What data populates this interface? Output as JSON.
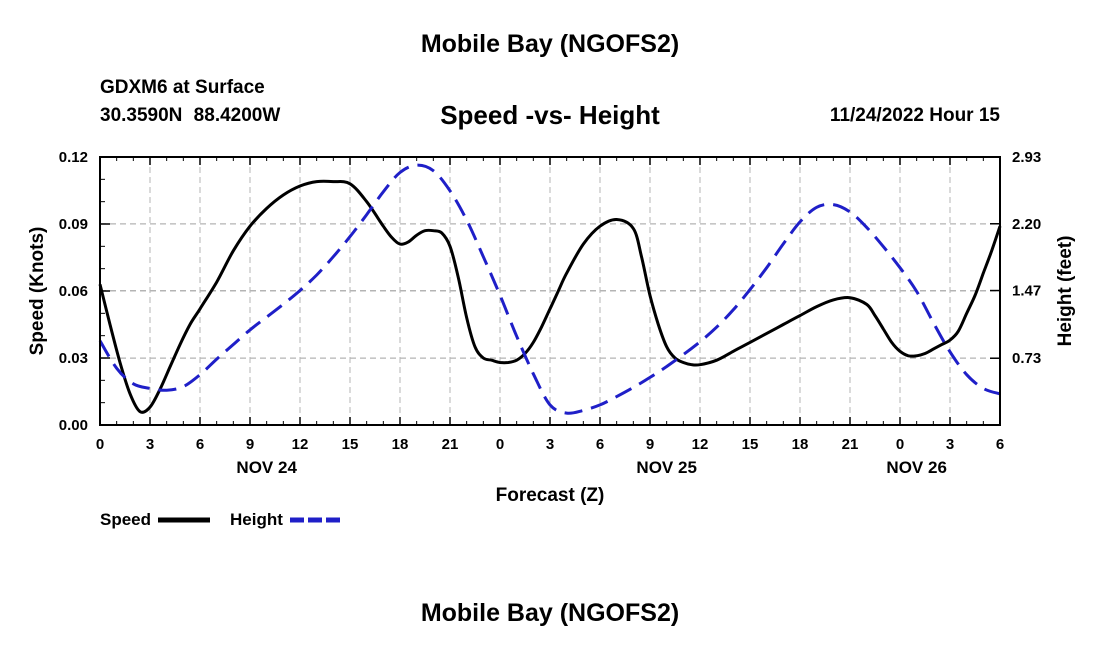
{
  "header": {
    "title": "Mobile Bay (NGOFS2)",
    "station": "GDXM6 at Surface",
    "coordinates": "30.3590N  88.4200W",
    "chart_title": "Speed -vs- Height",
    "datetime": "11/24/2022 Hour 15"
  },
  "footer": {
    "title": "Mobile Bay (NGOFS2)"
  },
  "colors": {
    "speed": "#000000",
    "height": "#1f1fc8",
    "grid": "#b4b4b4"
  },
  "chart_data": {
    "type": "line",
    "title": "Speed -vs- Height",
    "xlabel": "Forecast (Z)",
    "ylabel": "Speed (Knots)",
    "ylabel_right": "Height (feet)",
    "x_unit": "hours from 00Z Nov 24",
    "xlim": [
      0,
      54
    ],
    "ylim": [
      0,
      0.12
    ],
    "ylim_right": [
      0,
      2.93
    ],
    "grid": true,
    "legend_position": "bottom-left",
    "x_tick_labels": [
      "0",
      "3",
      "6",
      "9",
      "12",
      "15",
      "18",
      "21",
      "0",
      "3",
      "6",
      "9",
      "12",
      "15",
      "18",
      "21",
      "0",
      "3",
      "6"
    ],
    "y_tick_labels": [
      "0.00",
      "0.03",
      "0.06",
      "0.09",
      "0.12"
    ],
    "y_right_tick_labels": [
      "0.73",
      "1.47",
      "2.20",
      "2.93"
    ],
    "y_right_tick_values": [
      0.73,
      1.47,
      2.2,
      2.93
    ],
    "date_labels": [
      {
        "x": 10,
        "label": "NOV 24"
      },
      {
        "x": 34,
        "label": "NOV 25"
      },
      {
        "x": 49,
        "label": "NOV 26"
      }
    ],
    "series": [
      {
        "name": "Speed",
        "axis": "left",
        "style": "solid",
        "x": [
          0,
          0.6,
          1.2,
          1.8,
          2.4,
          3,
          3.6,
          4.2,
          4.8,
          5.4,
          6,
          7,
          8,
          9,
          10,
          11,
          12,
          13,
          14,
          15,
          16,
          17,
          17.5,
          18,
          18.5,
          19,
          19.5,
          20,
          20.5,
          21,
          21.5,
          22,
          22.5,
          23,
          23.5,
          24,
          24.5,
          25,
          25.5,
          26,
          26.5,
          27,
          27.5,
          28,
          29,
          30,
          31,
          32,
          32.5,
          33,
          33.5,
          34,
          34.5,
          35,
          35.5,
          36,
          37,
          38,
          39,
          40,
          41,
          42,
          43,
          44,
          45,
          46,
          46.5,
          47,
          47.5,
          48,
          48.5,
          49,
          49.5,
          50,
          50.5,
          51,
          51.5,
          52,
          52.5,
          53,
          53.5,
          54
        ],
        "values": [
          0.063,
          0.045,
          0.028,
          0.014,
          0.006,
          0.008,
          0.016,
          0.026,
          0.036,
          0.045,
          0.052,
          0.064,
          0.078,
          0.089,
          0.097,
          0.103,
          0.107,
          0.109,
          0.109,
          0.108,
          0.1,
          0.089,
          0.084,
          0.081,
          0.082,
          0.085,
          0.087,
          0.087,
          0.086,
          0.08,
          0.066,
          0.048,
          0.035,
          0.03,
          0.029,
          0.028,
          0.028,
          0.029,
          0.032,
          0.037,
          0.044,
          0.052,
          0.06,
          0.068,
          0.081,
          0.089,
          0.092,
          0.088,
          0.075,
          0.058,
          0.045,
          0.035,
          0.03,
          0.028,
          0.027,
          0.027,
          0.029,
          0.033,
          0.037,
          0.041,
          0.045,
          0.049,
          0.053,
          0.056,
          0.057,
          0.054,
          0.049,
          0.043,
          0.037,
          0.033,
          0.031,
          0.031,
          0.032,
          0.034,
          0.036,
          0.038,
          0.042,
          0.05,
          0.058,
          0.068,
          0.078,
          0.089
        ]
      },
      {
        "name": "Height",
        "axis": "right",
        "style": "dashed",
        "x": [
          0,
          1,
          2,
          3,
          4,
          5,
          6,
          7,
          8,
          9,
          10,
          11,
          12,
          13,
          14,
          15,
          16,
          17,
          18,
          19,
          20,
          21,
          22,
          23,
          24,
          25,
          26,
          27,
          28,
          29,
          30,
          31,
          32,
          33,
          34,
          35,
          36,
          37,
          38,
          39,
          40,
          41,
          42,
          43,
          44,
          45,
          46,
          47,
          48,
          49,
          50,
          51,
          52,
          53,
          54
        ],
        "values": [
          0.92,
          0.62,
          0.45,
          0.4,
          0.38,
          0.42,
          0.55,
          0.72,
          0.88,
          1.04,
          1.18,
          1.32,
          1.47,
          1.64,
          1.84,
          2.06,
          2.3,
          2.55,
          2.76,
          2.84,
          2.78,
          2.56,
          2.24,
          1.84,
          1.42,
          0.97,
          0.56,
          0.22,
          0.13,
          0.16,
          0.22,
          0.31,
          0.41,
          0.52,
          0.64,
          0.77,
          0.91,
          1.07,
          1.26,
          1.48,
          1.72,
          1.98,
          2.22,
          2.38,
          2.41,
          2.33,
          2.16,
          1.95,
          1.72,
          1.46,
          1.12,
          0.8,
          0.55,
          0.4,
          0.34
        ]
      }
    ]
  },
  "legend": [
    {
      "label": "Speed",
      "style": "solid",
      "color": "#000000"
    },
    {
      "label": "Height",
      "style": "dashed",
      "color": "#1f1fc8"
    }
  ]
}
